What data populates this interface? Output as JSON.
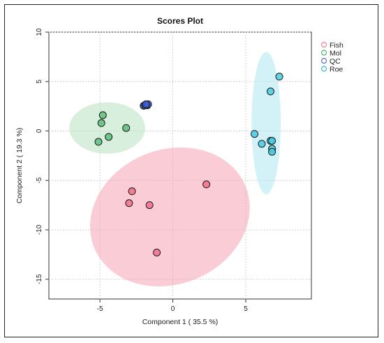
{
  "chart_data": {
    "type": "scatter",
    "title": "Scores Plot",
    "xlabel": "Component 1 ( 35.5 %)",
    "ylabel": "Component 2 ( 19.3 %)",
    "xlim": [
      -8.5,
      9.5
    ],
    "ylim": [
      -17,
      10
    ],
    "x_ticks": [
      -5,
      0,
      5
    ],
    "y_ticks": [
      -15,
      -10,
      -5,
      0,
      5,
      10
    ],
    "x_tick_labels": [
      "-5",
      "0",
      "5"
    ],
    "y_tick_labels": [
      "-15",
      "-10",
      "-5",
      "0",
      "5",
      "10"
    ],
    "grid": true,
    "legend_position": "top-right",
    "series": [
      {
        "name": "Fish",
        "color": "#e7868f",
        "fill": "#f06f8a",
        "points": [
          [
            -2.8,
            -6.1
          ],
          [
            -3.0,
            -7.3
          ],
          [
            -1.6,
            -7.5
          ],
          [
            2.3,
            -5.4
          ],
          [
            -1.1,
            -12.3
          ]
        ],
        "ellipse": {
          "cx": -0.2,
          "cy": -8.7,
          "rx": 5.6,
          "ry": 6.8,
          "angle_deg": 22,
          "fill": "#f5a3b3"
        }
      },
      {
        "name": "Mol",
        "color": "#52b56e",
        "fill": "#5cc07a",
        "points": [
          [
            -4.8,
            1.6
          ],
          [
            -4.9,
            0.8
          ],
          [
            -3.2,
            0.3
          ],
          [
            -4.4,
            -0.6
          ],
          [
            -5.1,
            -1.1
          ]
        ],
        "ellipse": {
          "cx": -4.5,
          "cy": 0.3,
          "rx": 2.6,
          "ry": 2.6,
          "angle_deg": 0,
          "fill": "#b6e2bf"
        }
      },
      {
        "name": "QC",
        "color": "#5f6fbf",
        "fill": "#3f5fd8",
        "points": [
          [
            -2.0,
            2.55
          ],
          [
            -1.9,
            2.6
          ],
          [
            -1.8,
            2.65
          ],
          [
            -1.75,
            2.6
          ],
          [
            -1.7,
            2.7
          ],
          [
            -1.85,
            2.7
          ]
        ],
        "ellipse": {
          "cx": -1.85,
          "cy": 2.63,
          "rx": 0.3,
          "ry": 0.15,
          "angle_deg": 0,
          "fill": "#c6cbe8"
        }
      },
      {
        "name": "Roe",
        "color": "#3cbdd1",
        "fill": "#46cce4",
        "points": [
          [
            7.3,
            5.5
          ],
          [
            6.7,
            4.0
          ],
          [
            5.6,
            -0.3
          ],
          [
            6.1,
            -1.3
          ],
          [
            6.7,
            -1.0
          ],
          [
            6.8,
            -1.0
          ],
          [
            6.8,
            -1.8
          ],
          [
            6.8,
            -2.1
          ]
        ],
        "ellipse": {
          "cx": 6.4,
          "cy": 0.8,
          "rx": 1.0,
          "ry": 7.2,
          "angle_deg": 0,
          "fill": "#aee8f3"
        }
      }
    ]
  }
}
